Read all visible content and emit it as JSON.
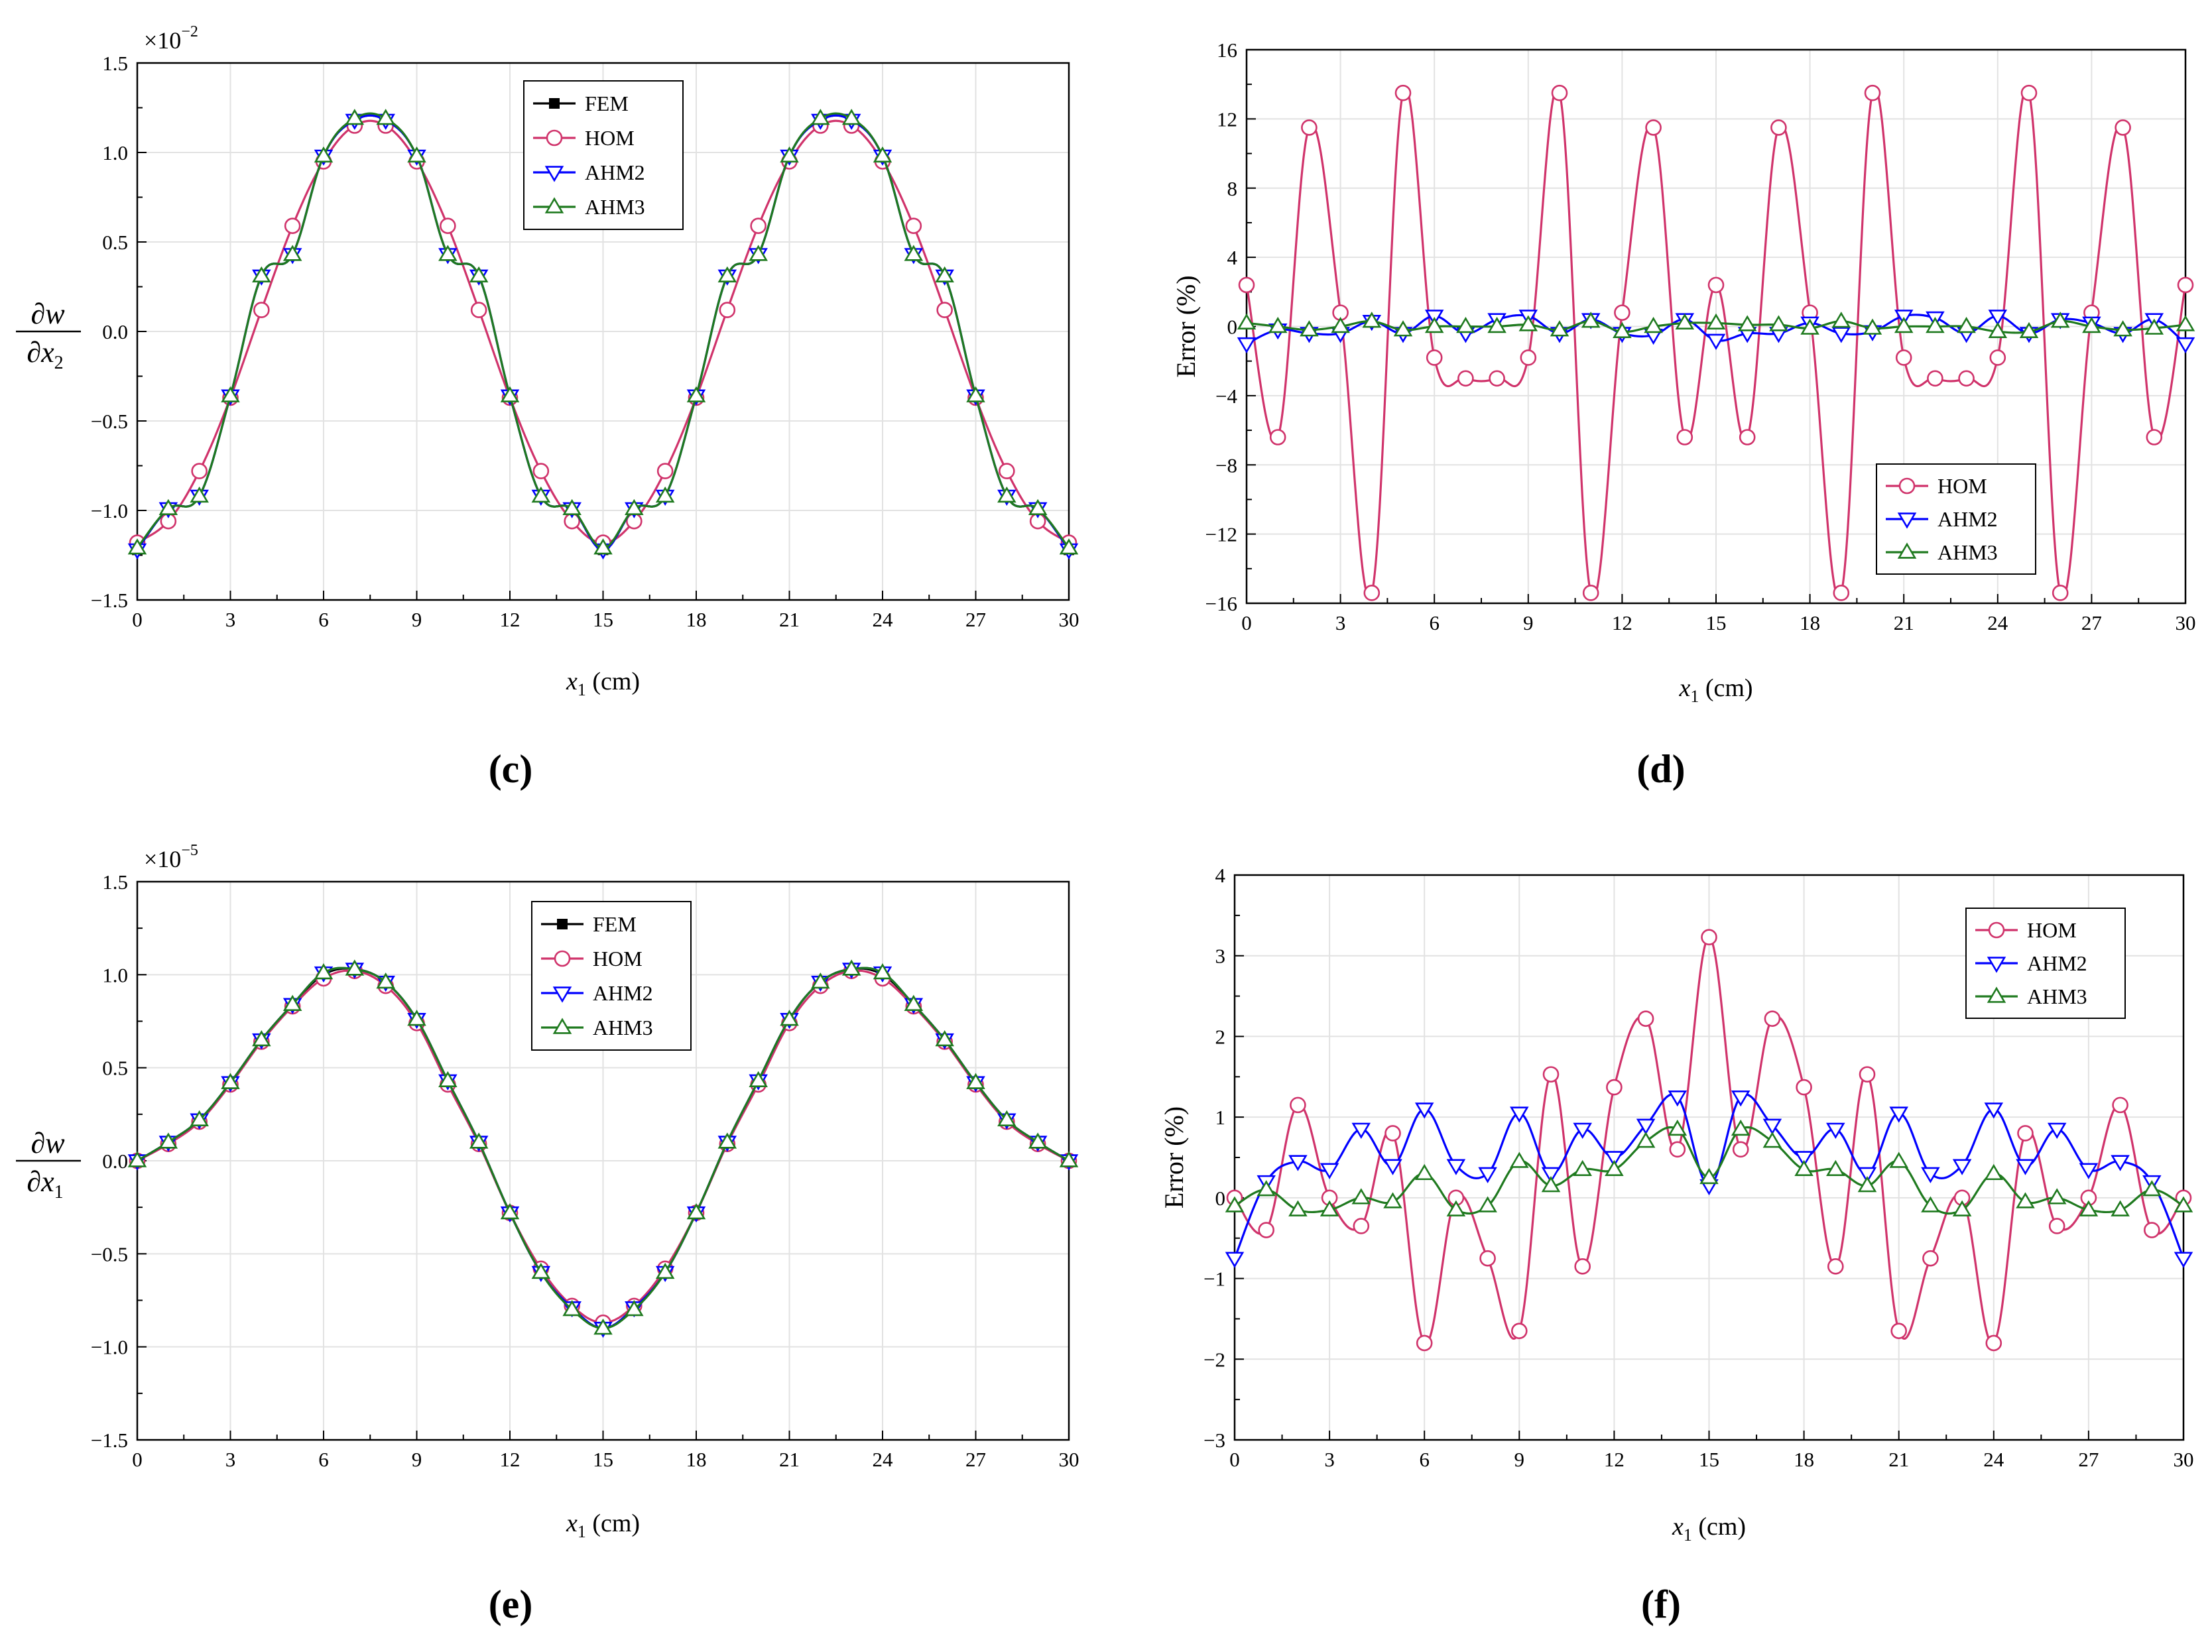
{
  "colors": {
    "FEM": "#000000",
    "HOM": "#d0336b",
    "AHM2": "#0000ff",
    "AHM3": "#1f7a1f"
  },
  "chart_data": [
    {
      "id": "c",
      "panel_label": "(c)",
      "type": "line",
      "xlabel": "x",
      "xlabel_sub": "1",
      "xlabel_unit": " (cm)",
      "ylabel_num": "∂w",
      "ylabel_den": "∂x",
      "ylabel_den_sub": "2",
      "scale_text": "×10",
      "scale_exp": "−2",
      "xlim": [
        0,
        30
      ],
      "ylim": [
        -1.5,
        1.5
      ],
      "xticks": [
        "0",
        "3",
        "6",
        "9",
        "12",
        "15",
        "18",
        "21",
        "24",
        "27",
        "30"
      ],
      "yticks": [
        "−1.5",
        "−1.0",
        "−0.5",
        "0.0",
        "0.5",
        "1.0",
        "1.5"
      ],
      "legend": [
        "FEM",
        "HOM",
        "AHM2",
        "AHM3"
      ],
      "series": [
        {
          "name": "FEM",
          "x": [
            0,
            1,
            2,
            3,
            4,
            5,
            6,
            7,
            8,
            9,
            10,
            11,
            12,
            13,
            14,
            15,
            16,
            17,
            18,
            19,
            20,
            21,
            22,
            23,
            24,
            25,
            26,
            27,
            28,
            29,
            30
          ],
          "values": [
            -1.22,
            -0.99,
            -0.92,
            -0.36,
            0.31,
            0.43,
            0.98,
            1.18,
            1.18,
            0.98,
            0.43,
            0.31,
            -0.36,
            -0.92,
            -0.99,
            -1.22,
            -0.99,
            -0.92,
            -0.36,
            0.31,
            0.43,
            0.98,
            1.18,
            1.18,
            0.98,
            0.43,
            0.31,
            -0.36,
            -0.92,
            -0.99,
            -1.22
          ]
        },
        {
          "name": "HOM",
          "x": [
            0,
            1,
            2,
            3,
            4,
            5,
            6,
            7,
            8,
            9,
            10,
            11,
            12,
            13,
            14,
            15,
            16,
            17,
            18,
            19,
            20,
            21,
            22,
            23,
            24,
            25,
            26,
            27,
            28,
            29,
            30
          ],
          "values": [
            -1.18,
            -1.06,
            -0.78,
            -0.37,
            0.12,
            0.59,
            0.95,
            1.15,
            1.15,
            0.95,
            0.59,
            0.12,
            -0.37,
            -0.78,
            -1.06,
            -1.18,
            -1.06,
            -0.78,
            -0.37,
            0.12,
            0.59,
            0.95,
            1.15,
            1.15,
            0.95,
            0.59,
            0.12,
            -0.37,
            -0.78,
            -1.06,
            -1.18
          ]
        },
        {
          "name": "AHM2",
          "x": [
            0,
            1,
            2,
            3,
            4,
            5,
            6,
            7,
            8,
            9,
            10,
            11,
            12,
            13,
            14,
            15,
            16,
            17,
            18,
            19,
            20,
            21,
            22,
            23,
            24,
            25,
            26,
            27,
            28,
            29,
            30
          ],
          "values": [
            -1.22,
            -0.99,
            -0.92,
            -0.36,
            0.31,
            0.43,
            0.98,
            1.18,
            1.18,
            0.98,
            0.43,
            0.31,
            -0.36,
            -0.92,
            -0.99,
            -1.22,
            -0.99,
            -0.92,
            -0.36,
            0.31,
            0.43,
            0.98,
            1.18,
            1.18,
            0.98,
            0.43,
            0.31,
            -0.36,
            -0.92,
            -0.99,
            -1.22
          ]
        },
        {
          "name": "AHM3",
          "x": [
            0,
            1,
            2,
            3,
            4,
            5,
            6,
            7,
            8,
            9,
            10,
            11,
            12,
            13,
            14,
            15,
            16,
            17,
            18,
            19,
            20,
            21,
            22,
            23,
            24,
            25,
            26,
            27,
            28,
            29,
            30
          ],
          "values": [
            -1.21,
            -0.99,
            -0.92,
            -0.36,
            0.31,
            0.43,
            0.98,
            1.19,
            1.19,
            0.98,
            0.43,
            0.31,
            -0.36,
            -0.92,
            -0.99,
            -1.21,
            -0.99,
            -0.92,
            -0.36,
            0.31,
            0.43,
            0.98,
            1.19,
            1.19,
            0.98,
            0.43,
            0.31,
            -0.36,
            -0.92,
            -0.99,
            -1.21
          ]
        }
      ]
    },
    {
      "id": "d",
      "panel_label": "(d)",
      "type": "line",
      "xlabel": "x",
      "xlabel_sub": "1",
      "xlabel_unit": " (cm)",
      "ylabel": "Error (%)",
      "xlim": [
        0,
        30
      ],
      "ylim": [
        -16,
        16
      ],
      "xticks": [
        "0",
        "3",
        "6",
        "9",
        "12",
        "15",
        "18",
        "21",
        "24",
        "27",
        "30"
      ],
      "yticks": [
        "−16",
        "−12",
        "−8",
        "−4",
        "0",
        "4",
        "8",
        "12",
        "16"
      ],
      "legend": [
        "HOM",
        "AHM2",
        "AHM3"
      ],
      "series": [
        {
          "name": "HOM",
          "x": [
            0,
            1,
            2,
            3,
            4,
            5,
            6,
            7,
            8,
            9,
            10,
            11,
            12,
            13,
            14,
            15,
            16,
            17,
            18,
            19,
            20,
            21,
            22,
            23,
            24,
            25,
            26,
            27,
            28,
            29,
            30
          ],
          "values": [
            2.4,
            -6.4,
            11.5,
            0.8,
            -15.4,
            13.5,
            -1.8,
            -3.0,
            -3.0,
            -1.8,
            13.5,
            -15.4,
            0.8,
            11.5,
            -6.4,
            2.4,
            -6.4,
            11.5,
            0.8,
            -15.4,
            13.5,
            -1.8,
            -3.0,
            -3.0,
            -1.8,
            13.5,
            -15.4,
            0.8,
            11.5,
            -6.4,
            2.4
          ]
        },
        {
          "name": "AHM2",
          "x": [
            0,
            1,
            2,
            3,
            4,
            5,
            6,
            7,
            8,
            9,
            10,
            11,
            12,
            13,
            14,
            15,
            16,
            17,
            18,
            19,
            20,
            21,
            22,
            23,
            24,
            25,
            26,
            27,
            28,
            29,
            30
          ],
          "values": [
            -1.0,
            -0.2,
            -0.4,
            -0.4,
            0.3,
            -0.4,
            0.6,
            -0.4,
            0.4,
            0.6,
            -0.4,
            0.4,
            -0.4,
            -0.5,
            0.4,
            -0.8,
            -0.4,
            -0.4,
            0.2,
            -0.4,
            -0.3,
            0.6,
            0.5,
            -0.4,
            0.6,
            -0.4,
            0.4,
            0.2,
            -0.4,
            0.4,
            -1.0
          ]
        },
        {
          "name": "AHM3",
          "x": [
            0,
            1,
            2,
            3,
            4,
            5,
            6,
            7,
            8,
            9,
            10,
            11,
            12,
            13,
            14,
            15,
            16,
            17,
            18,
            19,
            20,
            21,
            22,
            23,
            24,
            25,
            26,
            27,
            28,
            29,
            30
          ],
          "values": [
            0.2,
            0.0,
            -0.2,
            0.0,
            0.3,
            -0.2,
            0.0,
            0.0,
            0.0,
            0.1,
            -0.2,
            0.3,
            -0.3,
            0.0,
            0.2,
            0.2,
            0.1,
            0.1,
            -0.1,
            0.3,
            -0.1,
            0.0,
            0.0,
            0.0,
            -0.3,
            -0.3,
            0.3,
            0.0,
            -0.2,
            -0.1,
            0.1
          ]
        }
      ]
    },
    {
      "id": "e",
      "panel_label": "(e)",
      "type": "line",
      "xlabel": "x",
      "xlabel_sub": "1",
      "xlabel_unit": " (cm)",
      "ylabel_num": "∂w",
      "ylabel_den": "∂x",
      "ylabel_den_sub": "1",
      "scale_text": "×10",
      "scale_exp": "−5",
      "xlim": [
        0,
        30
      ],
      "ylim": [
        -1.5,
        1.5
      ],
      "xticks": [
        "0",
        "3",
        "6",
        "9",
        "12",
        "15",
        "18",
        "21",
        "24",
        "27",
        "30"
      ],
      "yticks": [
        "−1.5",
        "−1.0",
        "−0.5",
        "0.0",
        "0.5",
        "1.0",
        "1.5"
      ],
      "legend": [
        "FEM",
        "HOM",
        "AHM2",
        "AHM3"
      ],
      "series": [
        {
          "name": "FEM",
          "x": [
            0,
            1,
            2,
            3,
            4,
            5,
            6,
            7,
            8,
            9,
            10,
            11,
            12,
            13,
            14,
            15,
            16,
            17,
            18,
            19,
            20,
            21,
            22,
            23,
            24,
            25,
            26,
            27,
            28,
            29,
            30
          ],
          "values": [
            0.0,
            0.1,
            0.22,
            0.42,
            0.65,
            0.84,
            1.0,
            1.03,
            0.96,
            0.76,
            0.43,
            0.1,
            -0.28,
            -0.6,
            -0.79,
            -0.9,
            -0.79,
            -0.6,
            -0.28,
            0.1,
            0.43,
            0.76,
            0.96,
            1.03,
            1.0,
            0.84,
            0.65,
            0.42,
            0.22,
            0.1,
            0.0
          ]
        },
        {
          "name": "HOM",
          "x": [
            0,
            1,
            2,
            3,
            4,
            5,
            6,
            7,
            8,
            9,
            10,
            11,
            12,
            13,
            14,
            15,
            16,
            17,
            18,
            19,
            20,
            21,
            22,
            23,
            24,
            25,
            26,
            27,
            28,
            29,
            30
          ],
          "values": [
            0.0,
            0.09,
            0.21,
            0.41,
            0.64,
            0.83,
            0.98,
            1.02,
            0.94,
            0.74,
            0.41,
            0.09,
            -0.28,
            -0.58,
            -0.78,
            -0.87,
            -0.78,
            -0.58,
            -0.28,
            0.09,
            0.41,
            0.74,
            0.94,
            1.02,
            0.98,
            0.83,
            0.64,
            0.41,
            0.21,
            0.09,
            0.0
          ]
        },
        {
          "name": "AHM2",
          "x": [
            0,
            1,
            2,
            3,
            4,
            5,
            6,
            7,
            8,
            9,
            10,
            11,
            12,
            13,
            14,
            15,
            16,
            17,
            18,
            19,
            20,
            21,
            22,
            23,
            24,
            25,
            26,
            27,
            28,
            29,
            30
          ],
          "values": [
            0.0,
            0.1,
            0.22,
            0.42,
            0.65,
            0.84,
            1.01,
            1.03,
            0.96,
            0.76,
            0.43,
            0.1,
            -0.28,
            -0.6,
            -0.79,
            -0.9,
            -0.79,
            -0.6,
            -0.28,
            0.1,
            0.43,
            0.76,
            0.96,
            1.03,
            1.01,
            0.84,
            0.65,
            0.42,
            0.22,
            0.1,
            0.0
          ]
        },
        {
          "name": "AHM3",
          "x": [
            0,
            1,
            2,
            3,
            4,
            5,
            6,
            7,
            8,
            9,
            10,
            11,
            12,
            13,
            14,
            15,
            16,
            17,
            18,
            19,
            20,
            21,
            22,
            23,
            24,
            25,
            26,
            27,
            28,
            29,
            30
          ],
          "values": [
            0.0,
            0.1,
            0.22,
            0.42,
            0.65,
            0.84,
            1.01,
            1.03,
            0.96,
            0.76,
            0.43,
            0.1,
            -0.28,
            -0.6,
            -0.8,
            -0.9,
            -0.8,
            -0.6,
            -0.28,
            0.1,
            0.43,
            0.76,
            0.96,
            1.03,
            1.01,
            0.84,
            0.65,
            0.42,
            0.22,
            0.1,
            0.0
          ]
        }
      ]
    },
    {
      "id": "f",
      "panel_label": "(f)",
      "type": "line",
      "xlabel": "x",
      "xlabel_sub": "1",
      "xlabel_unit": " (cm)",
      "ylabel": "Error (%)",
      "xlim": [
        0,
        30
      ],
      "ylim": [
        -3,
        4
      ],
      "xticks": [
        "0",
        "3",
        "6",
        "9",
        "12",
        "15",
        "18",
        "21",
        "24",
        "27",
        "30"
      ],
      "yticks": [
        "−3",
        "−2",
        "−1",
        "0",
        "1",
        "2",
        "3",
        "4"
      ],
      "legend": [
        "HOM",
        "AHM2",
        "AHM3"
      ],
      "series": [
        {
          "name": "HOM",
          "x": [
            0,
            1,
            2,
            3,
            4,
            5,
            6,
            7,
            8,
            9,
            10,
            11,
            12,
            13,
            14,
            15,
            16,
            17,
            18,
            19,
            20,
            21,
            22,
            23,
            24,
            25,
            26,
            27,
            28,
            29,
            30
          ],
          "values": [
            0.0,
            -0.4,
            1.15,
            0.0,
            -0.35,
            0.8,
            -1.8,
            0.0,
            -0.75,
            -1.65,
            1.53,
            -0.85,
            1.37,
            2.22,
            0.6,
            3.23,
            0.6,
            2.22,
            1.37,
            -0.85,
            1.53,
            -1.65,
            -0.75,
            0.0,
            -1.8,
            0.8,
            -0.35,
            0.0,
            1.15,
            -0.4,
            0.0
          ]
        },
        {
          "name": "AHM2",
          "x": [
            0,
            1,
            2,
            3,
            4,
            5,
            6,
            7,
            8,
            9,
            10,
            11,
            12,
            13,
            14,
            15,
            16,
            17,
            18,
            19,
            20,
            21,
            22,
            23,
            24,
            25,
            26,
            27,
            28,
            29,
            30
          ],
          "values": [
            -0.75,
            0.2,
            0.45,
            0.35,
            0.85,
            0.4,
            1.1,
            0.4,
            0.3,
            1.05,
            0.3,
            0.85,
            0.5,
            0.9,
            1.25,
            0.15,
            1.25,
            0.9,
            0.5,
            0.85,
            0.3,
            1.05,
            0.3,
            0.4,
            1.1,
            0.4,
            0.85,
            0.35,
            0.45,
            0.2,
            -0.75
          ]
        },
        {
          "name": "AHM3",
          "x": [
            0,
            1,
            2,
            3,
            4,
            5,
            6,
            7,
            8,
            9,
            10,
            11,
            12,
            13,
            14,
            15,
            16,
            17,
            18,
            19,
            20,
            21,
            22,
            23,
            24,
            25,
            26,
            27,
            28,
            29,
            30
          ],
          "values": [
            -0.1,
            0.1,
            -0.15,
            -0.15,
            0.0,
            -0.05,
            0.3,
            -0.15,
            -0.1,
            0.45,
            0.15,
            0.35,
            0.35,
            0.7,
            0.85,
            0.25,
            0.85,
            0.7,
            0.35,
            0.35,
            0.15,
            0.45,
            -0.1,
            -0.15,
            0.3,
            -0.05,
            0.0,
            -0.15,
            -0.15,
            0.1,
            -0.1
          ]
        }
      ]
    }
  ]
}
